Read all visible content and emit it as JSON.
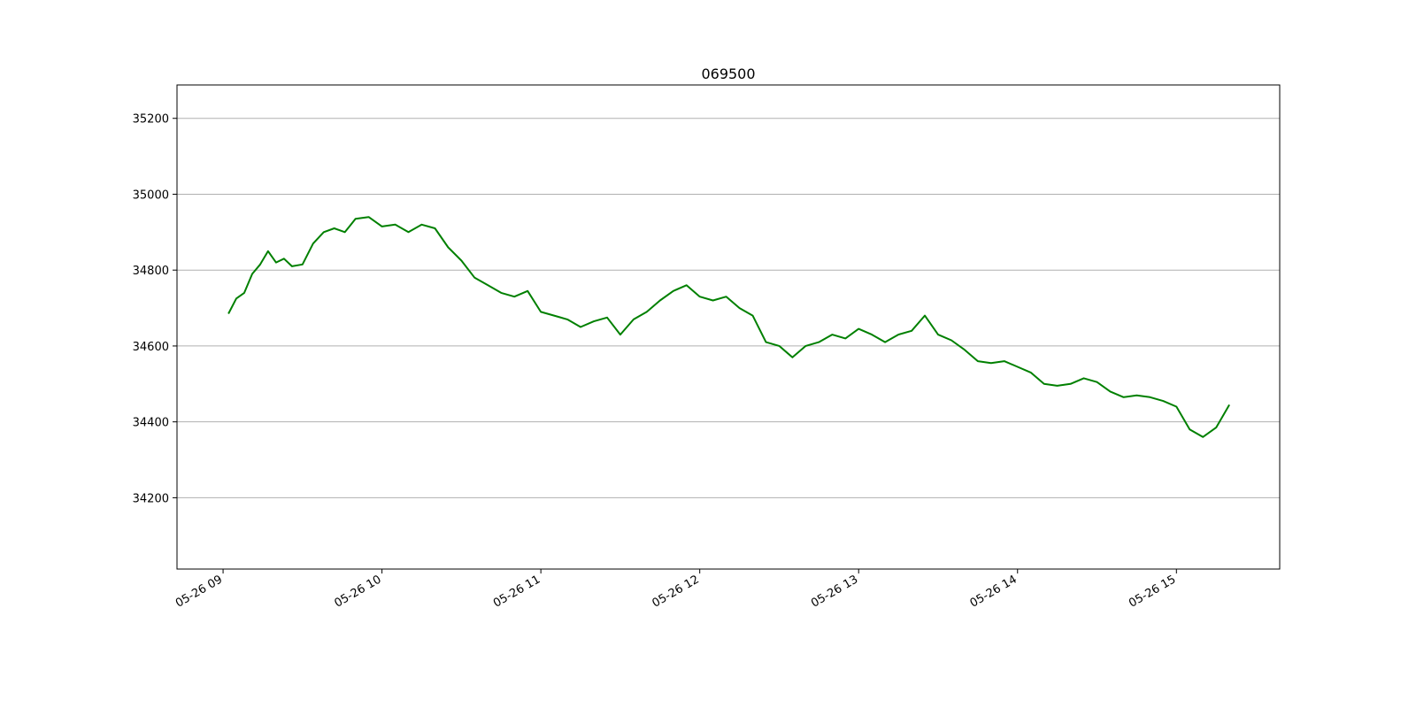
{
  "chart_data": {
    "type": "line",
    "title": "069500",
    "xlabel": "",
    "ylabel": "",
    "x_tick_labels": [
      "05-26 09",
      "05-26 10",
      "05-26 11",
      "05-26 12",
      "05-26 13",
      "05-26 14",
      "05-26 15"
    ],
    "x_tick_hours": [
      9,
      10,
      11,
      12,
      13,
      14,
      15
    ],
    "xlim_hours": [
      8.71,
      15.65
    ],
    "y_tick_labels": [
      "34200",
      "34400",
      "34600",
      "34800",
      "35000",
      "35200"
    ],
    "y_ticks": [
      34200,
      34400,
      34600,
      34800,
      35000,
      35200
    ],
    "ylim": [
      34012,
      35288
    ],
    "grid": "y-only",
    "line_color": "#008000",
    "grid_color": "#b0b0b0",
    "series": [
      {
        "x": [
          "09:02",
          "09:05",
          "09:08",
          "09:11",
          "09:14",
          "09:17",
          "09:20",
          "09:23",
          "09:26",
          "09:30",
          "09:34",
          "09:38",
          "09:42",
          "09:46",
          "09:50",
          "09:55",
          "10:00",
          "10:05",
          "10:10",
          "10:15",
          "10:20",
          "10:25",
          "10:30",
          "10:35",
          "10:40",
          "10:45",
          "10:50",
          "10:55",
          "11:00",
          "11:05",
          "11:10",
          "11:15",
          "11:20",
          "11:25",
          "11:30",
          "11:35",
          "11:40",
          "11:45",
          "11:50",
          "11:55",
          "12:00",
          "12:05",
          "12:10",
          "12:15",
          "12:20",
          "12:25",
          "12:30",
          "12:35",
          "12:40",
          "12:45",
          "12:50",
          "12:55",
          "13:00",
          "13:05",
          "13:10",
          "13:15",
          "13:20",
          "13:25",
          "13:30",
          "13:35",
          "13:40",
          "13:45",
          "13:50",
          "13:55",
          "14:00",
          "14:05",
          "14:10",
          "14:15",
          "14:20",
          "14:25",
          "14:30",
          "14:35",
          "14:40",
          "14:45",
          "14:50",
          "14:55",
          "15:00",
          "15:05",
          "15:10",
          "15:15",
          "15:20"
        ],
        "y": [
          34685,
          34725,
          34740,
          34790,
          34815,
          34850,
          34820,
          34830,
          34810,
          34815,
          34870,
          34900,
          34910,
          34900,
          34935,
          34940,
          34915,
          34920,
          34900,
          34920,
          34910,
          34860,
          34825,
          34780,
          34760,
          34740,
          34730,
          34745,
          34690,
          34680,
          34670,
          34650,
          34665,
          34675,
          34630,
          34670,
          34690,
          34720,
          34745,
          34760,
          34730,
          34720,
          34730,
          34700,
          34680,
          34610,
          34600,
          34570,
          34600,
          34610,
          34630,
          34620,
          34645,
          34630,
          34610,
          34630,
          34640,
          34680,
          34630,
          34615,
          34590,
          34560,
          34555,
          34560,
          34545,
          34530,
          34500,
          34495,
          34500,
          34515,
          34505,
          34480,
          34465,
          34470,
          34465,
          34455,
          34440,
          34380,
          34360,
          34385,
          34445
        ]
      }
    ]
  }
}
